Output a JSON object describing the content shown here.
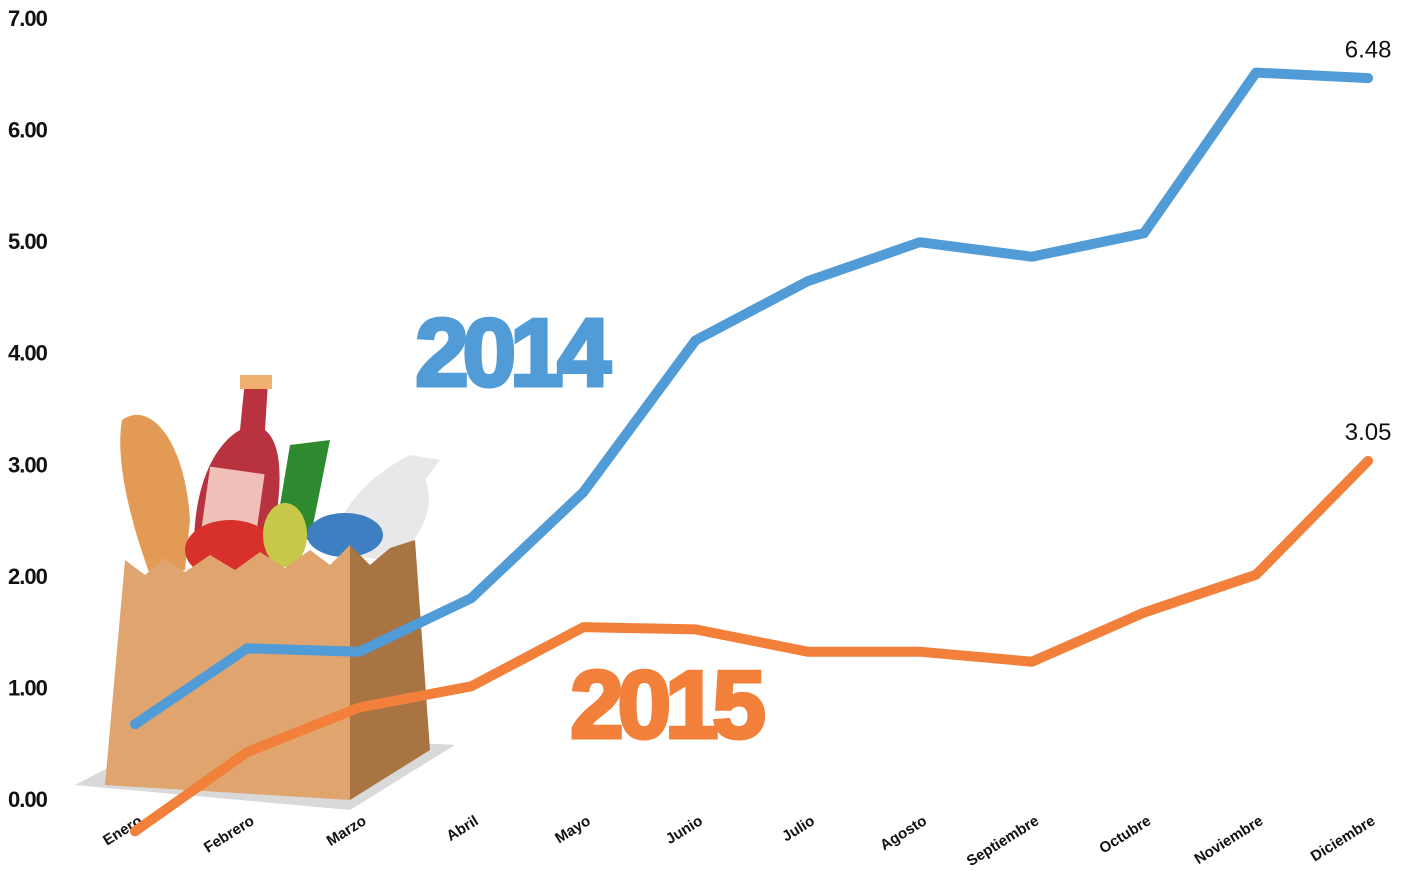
{
  "chart_data": {
    "type": "line",
    "categories": [
      "Enero",
      "Febrero",
      "Marzo",
      "Abril",
      "Mayo",
      "Junio",
      "Julio",
      "Agosto",
      "Septiembre",
      "Octubre",
      "Noviembre",
      "Diciembre"
    ],
    "series": [
      {
        "name": "2014",
        "color": "#519bd6",
        "values": [
          0.69,
          1.37,
          1.34,
          1.82,
          2.77,
          4.13,
          4.66,
          5.01,
          4.88,
          5.09,
          6.53,
          6.48
        ]
      },
      {
        "name": "2015",
        "color": "#f2803b",
        "values": [
          -0.27,
          0.44,
          0.84,
          1.03,
          1.56,
          1.54,
          1.34,
          1.34,
          1.25,
          1.69,
          2.03,
          3.05
        ]
      }
    ],
    "ylim": [
      -0.5,
      7.1
    ],
    "yticks": [
      {
        "value": 0,
        "label": "0.00"
      },
      {
        "value": 1,
        "label": "1.00"
      },
      {
        "value": 2,
        "label": "2.00"
      },
      {
        "value": 3,
        "label": "3.00"
      },
      {
        "value": 4,
        "label": "4.00"
      },
      {
        "value": 5,
        "label": "5.00"
      },
      {
        "value": 6,
        "label": "6.00"
      },
      {
        "value": 7,
        "label": "7.00"
      }
    ],
    "label_last_point": true
  }
}
